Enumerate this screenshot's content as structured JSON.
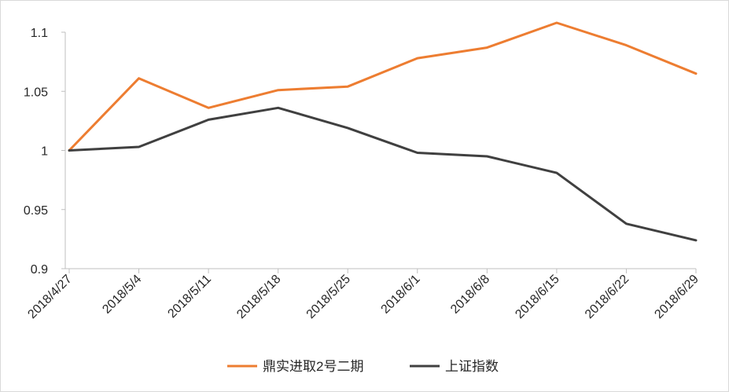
{
  "chart_data": {
    "type": "line",
    "title": "",
    "xlabel": "",
    "ylabel": "",
    "categories": [
      "2018/4/27",
      "2018/5/4",
      "2018/5/11",
      "2018/5/18",
      "2018/5/25",
      "2018/6/1",
      "2018/6/8",
      "2018/6/15",
      "2018/6/22",
      "2018/6/29"
    ],
    "ylim": [
      0.9,
      1.1
    ],
    "yticks": [
      "0.9",
      "0.95",
      "1",
      "1.05",
      "1.1"
    ],
    "grid": false,
    "legend_position": "bottom",
    "series": [
      {
        "name": "鼎实进取2号二期",
        "color": "#ed7d31",
        "values": [
          1.0,
          1.061,
          1.036,
          1.051,
          1.054,
          1.078,
          1.087,
          1.108,
          1.089,
          1.065
        ]
      },
      {
        "name": "上证指数",
        "color": "#404040",
        "values": [
          1.0,
          1.003,
          1.026,
          1.036,
          1.019,
          0.998,
          0.995,
          0.981,
          0.938,
          0.924
        ]
      }
    ]
  }
}
